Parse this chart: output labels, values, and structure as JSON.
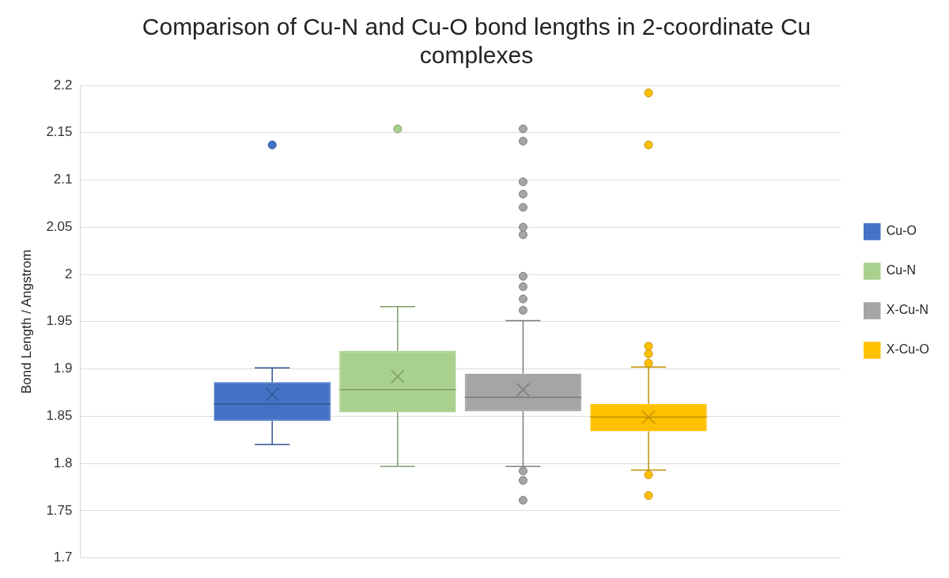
{
  "chart_data": {
    "type": "box",
    "title": "Comparison of Cu-N and Cu-O bond lengths in 2-coordinate Cu complexes",
    "ylabel": "Bond Length / Angstrom",
    "categories": [
      null
    ],
    "series": [
      {
        "name": "Cu-O",
        "color": "#4472c4",
        "boxes": [
          {
            "low": 1.82,
            "q1": 1.845,
            "median": 1.863,
            "q3": 1.886,
            "high": 1.901,
            "mean": 1.873,
            "outliers": [
              2.137
            ]
          }
        ]
      },
      {
        "name": "Cu-N",
        "color": "#a9d18e",
        "boxes": [
          {
            "low": 1.797,
            "q1": 1.854,
            "median": 1.878,
            "q3": 1.919,
            "high": 1.966,
            "mean": 1.892,
            "outliers": [
              2.154
            ]
          }
        ]
      },
      {
        "name": "X-Cu-N",
        "color": "#a5a5a5",
        "boxes": [
          {
            "low": 1.797,
            "q1": 1.855,
            "median": 1.87,
            "q3": 1.895,
            "high": 1.951,
            "mean": 1.878,
            "outliers": [
              2.154,
              2.141,
              2.098,
              2.085,
              2.071,
              2.05,
              2.042,
              1.998,
              1.987,
              1.974,
              1.962,
              1.792,
              1.782,
              1.761
            ]
          }
        ]
      },
      {
        "name": "X-Cu-O",
        "color": "#ffc000",
        "boxes": [
          {
            "low": 1.793,
            "q1": 1.834,
            "median": 1.849,
            "q3": 1.863,
            "high": 1.902,
            "mean": 1.849,
            "outliers": [
              2.192,
              2.137,
              1.924,
              1.916,
              1.906,
              1.788,
              1.766
            ]
          }
        ]
      }
    ],
    "ylim": [
      1.7,
      2.2
    ],
    "yticks": [
      1.7,
      1.75,
      1.8,
      1.85,
      1.9,
      1.95,
      2,
      2.05,
      2.1,
      2.15,
      2.2
    ],
    "grid": "y",
    "legend": "right"
  }
}
